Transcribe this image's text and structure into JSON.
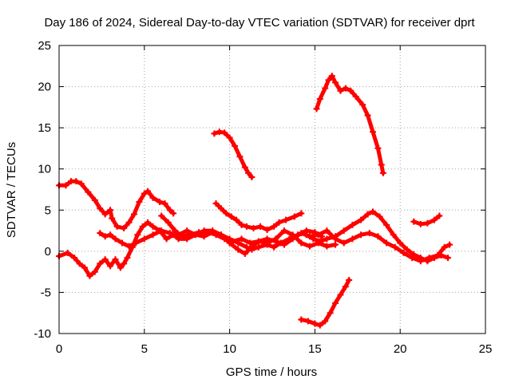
{
  "chart_data": {
    "type": "scatter",
    "title": "Day 186 of 2024, Sidereal Day-to-day VTEC variation (SDTVAR) for receiver dprt",
    "xlabel": "GPS time / hours",
    "ylabel": "SDTVAR / TECUs",
    "xlim": [
      0,
      25
    ],
    "ylim": [
      -10,
      25
    ],
    "xticks": [
      0,
      5,
      10,
      15,
      20,
      25
    ],
    "yticks": [
      -10,
      -5,
      0,
      5,
      10,
      15,
      20,
      25
    ],
    "grid": true,
    "marker": "plus",
    "color": "#ff0000",
    "series": [
      {
        "name": "s1",
        "points": [
          [
            0,
            8
          ],
          [
            0.4,
            8
          ],
          [
            0.7,
            8.5
          ],
          [
            1.0,
            8.5
          ],
          [
            1.3,
            8.2
          ],
          [
            1.7,
            7.2
          ],
          [
            2.1,
            6.2
          ],
          [
            2.4,
            5.2
          ],
          [
            2.7,
            4.5
          ],
          [
            3.0,
            5
          ],
          [
            3.1,
            4.0
          ],
          [
            3.4,
            3.0
          ],
          [
            3.8,
            2.8
          ],
          [
            4.1,
            3.5
          ],
          [
            4.4,
            4.5
          ],
          [
            4.7,
            6.0
          ],
          [
            5.0,
            7.0
          ],
          [
            5.2,
            7.3
          ],
          [
            5.5,
            6.5
          ],
          [
            5.9,
            6.0
          ],
          [
            6.2,
            5.8
          ],
          [
            6.5,
            5.0
          ],
          [
            6.7,
            4.6
          ]
        ]
      },
      {
        "name": "s2",
        "points": [
          [
            0,
            -0.6
          ],
          [
            0.5,
            -0.2
          ],
          [
            0.9,
            -0.8
          ],
          [
            1.2,
            -1.5
          ],
          [
            1.5,
            -2.0
          ],
          [
            1.8,
            -3.0
          ],
          [
            2.1,
            -2.5
          ],
          [
            2.4,
            -1.5
          ],
          [
            2.7,
            -1.0
          ],
          [
            3.0,
            -1.8
          ],
          [
            3.3,
            -1.0
          ],
          [
            3.6,
            -2.0
          ],
          [
            3.8,
            -1.5
          ],
          [
            4.0,
            -0.8
          ],
          [
            4.3,
            0.5
          ],
          [
            4.6,
            2.0
          ],
          [
            4.9,
            3.0
          ],
          [
            5.2,
            3.5
          ],
          [
            5.5,
            3.0
          ],
          [
            5.9,
            2.5
          ],
          [
            6.3,
            1.5
          ],
          [
            6.7,
            2.0
          ],
          [
            7.0,
            1.5
          ],
          [
            7.5,
            1.5
          ],
          [
            8.0,
            2.0
          ],
          [
            8.5,
            2.5
          ],
          [
            9.0,
            2.5
          ],
          [
            9.5,
            2.0
          ],
          [
            10.0,
            1.5
          ],
          [
            10.5,
            1.0
          ],
          [
            11.0,
            0.5
          ],
          [
            11.3,
            0.2
          ],
          [
            11.7,
            0.5
          ],
          [
            12.2,
            0.8
          ],
          [
            12.6,
            0.5
          ],
          [
            13.0,
            1.0
          ],
          [
            13.5,
            1.5
          ],
          [
            14.0,
            2.0
          ],
          [
            14.5,
            2.5
          ],
          [
            15.0,
            2.3
          ],
          [
            15.4,
            1.8
          ]
        ]
      },
      {
        "name": "s3",
        "points": [
          [
            2.4,
            2.2
          ],
          [
            2.7,
            1.8
          ],
          [
            3.0,
            2.0
          ],
          [
            3.3,
            1.5
          ],
          [
            3.7,
            1.0
          ],
          [
            4.1,
            0.6
          ],
          [
            4.5,
            1.0
          ],
          [
            5.0,
            1.5
          ],
          [
            5.5,
            2.0
          ],
          [
            6.0,
            2.5
          ],
          [
            6.5,
            2.2
          ],
          [
            7.0,
            2.0
          ],
          [
            7.5,
            2.5
          ],
          [
            8.0,
            2.0
          ],
          [
            8.5,
            1.8
          ],
          [
            9.0,
            2.3
          ],
          [
            9.5,
            2.0
          ],
          [
            10.0,
            1.0
          ],
          [
            10.5,
            0.2
          ],
          [
            10.9,
            -0.3
          ],
          [
            11.3,
            0.5
          ],
          [
            11.7,
            1.2
          ],
          [
            12.2,
            1.0
          ],
          [
            12.7,
            1.5
          ],
          [
            13.2,
            2.5
          ],
          [
            13.7,
            2.0
          ],
          [
            14.2,
            1.0
          ],
          [
            14.7,
            0.6
          ],
          [
            15.2,
            1.0
          ],
          [
            15.7,
            0.6
          ],
          [
            16.2,
            0.8
          ]
        ]
      },
      {
        "name": "s4",
        "points": [
          [
            6.0,
            4.3
          ],
          [
            6.4,
            3.5
          ],
          [
            6.8,
            2.5
          ],
          [
            7.2,
            1.8
          ],
          [
            7.7,
            2.0
          ],
          [
            8.2,
            2.3
          ],
          [
            8.7,
            2.3
          ],
          [
            9.2,
            2.0
          ],
          [
            9.7,
            1.5
          ],
          [
            10.2,
            1.2
          ],
          [
            10.7,
            1.5
          ],
          [
            11.2,
            1.0
          ],
          [
            11.7,
            1.2
          ],
          [
            12.2,
            1.5
          ],
          [
            12.7,
            1.2
          ],
          [
            13.2,
            0.8
          ],
          [
            13.7,
            1.5
          ],
          [
            14.2,
            2.2
          ],
          [
            14.7,
            1.8
          ],
          [
            15.2,
            2.0
          ],
          [
            15.7,
            2.5
          ],
          [
            16.2,
            1.5
          ],
          [
            16.7,
            1.0
          ],
          [
            17.2,
            1.5
          ],
          [
            17.7,
            2.0
          ],
          [
            18.2,
            2.2
          ],
          [
            18.7,
            1.8
          ],
          [
            19.2,
            1.0
          ],
          [
            19.7,
            0.5
          ],
          [
            20.2,
            -0.2
          ],
          [
            20.7,
            -0.8
          ],
          [
            21.2,
            -1.2
          ],
          [
            21.7,
            -0.8
          ],
          [
            22.2,
            -0.5
          ],
          [
            22.6,
            0.5
          ],
          [
            22.9,
            0.8
          ]
        ]
      },
      {
        "name": "s5",
        "points": [
          [
            9.1,
            14.3
          ],
          [
            9.4,
            14.5
          ],
          [
            9.7,
            14.4
          ],
          [
            10.0,
            13.8
          ],
          [
            10.3,
            12.8
          ],
          [
            10.6,
            11.5
          ],
          [
            10.9,
            10.2
          ],
          [
            11.1,
            9.5
          ],
          [
            11.3,
            9.0
          ]
        ]
      },
      {
        "name": "s6",
        "points": [
          [
            9.2,
            5.8
          ],
          [
            9.5,
            5.2
          ],
          [
            9.8,
            4.6
          ],
          [
            10.1,
            4.2
          ],
          [
            10.4,
            3.8
          ],
          [
            10.7,
            3.2
          ],
          [
            11.0,
            3.0
          ],
          [
            11.4,
            2.8
          ],
          [
            11.8,
            3.0
          ],
          [
            12.2,
            2.6
          ],
          [
            12.6,
            3.0
          ],
          [
            12.9,
            3.5
          ],
          [
            13.3,
            3.8
          ],
          [
            13.8,
            4.2
          ],
          [
            14.2,
            4.6
          ]
        ]
      },
      {
        "name": "s7",
        "points": [
          [
            14.5,
            2.0
          ],
          [
            14.9,
            1.5
          ],
          [
            15.3,
            1.2
          ],
          [
            15.7,
            1.5
          ],
          [
            16.2,
            1.8
          ],
          [
            16.7,
            2.5
          ],
          [
            17.2,
            3.2
          ],
          [
            17.7,
            3.8
          ],
          [
            18.1,
            4.5
          ],
          [
            18.4,
            4.8
          ],
          [
            18.8,
            4.2
          ],
          [
            19.2,
            3.2
          ],
          [
            19.6,
            2.0
          ],
          [
            20.0,
            1.0
          ],
          [
            20.4,
            0.2
          ],
          [
            20.8,
            -0.4
          ],
          [
            21.2,
            -0.8
          ],
          [
            21.6,
            -1.2
          ],
          [
            22.0,
            -0.8
          ],
          [
            22.4,
            -0.5
          ],
          [
            22.8,
            -0.8
          ]
        ]
      },
      {
        "name": "s8",
        "points": [
          [
            15.1,
            17.3
          ],
          [
            15.3,
            18.5
          ],
          [
            15.6,
            19.8
          ],
          [
            15.8,
            20.8
          ],
          [
            16.0,
            21.3
          ],
          [
            16.2,
            20.5
          ],
          [
            16.5,
            19.5
          ],
          [
            16.8,
            19.8
          ],
          [
            17.1,
            19.5
          ],
          [
            17.4,
            18.8
          ],
          [
            17.8,
            17.8
          ],
          [
            18.1,
            16.5
          ],
          [
            18.4,
            14.5
          ],
          [
            18.7,
            12.5
          ],
          [
            18.9,
            10.5
          ],
          [
            19.0,
            9.5
          ]
        ]
      },
      {
        "name": "s9",
        "points": [
          [
            14.2,
            -8.3
          ],
          [
            14.6,
            -8.5
          ],
          [
            15.0,
            -8.8
          ],
          [
            15.3,
            -9.0
          ],
          [
            15.6,
            -8.5
          ],
          [
            15.9,
            -7.5
          ],
          [
            16.2,
            -6.3
          ],
          [
            16.5,
            -5.3
          ],
          [
            16.8,
            -4.3
          ],
          [
            17.0,
            -3.5
          ]
        ]
      },
      {
        "name": "s10",
        "points": [
          [
            20.8,
            3.6
          ],
          [
            21.2,
            3.3
          ],
          [
            21.6,
            3.4
          ],
          [
            22.0,
            3.8
          ],
          [
            22.3,
            4.3
          ]
        ]
      }
    ]
  }
}
